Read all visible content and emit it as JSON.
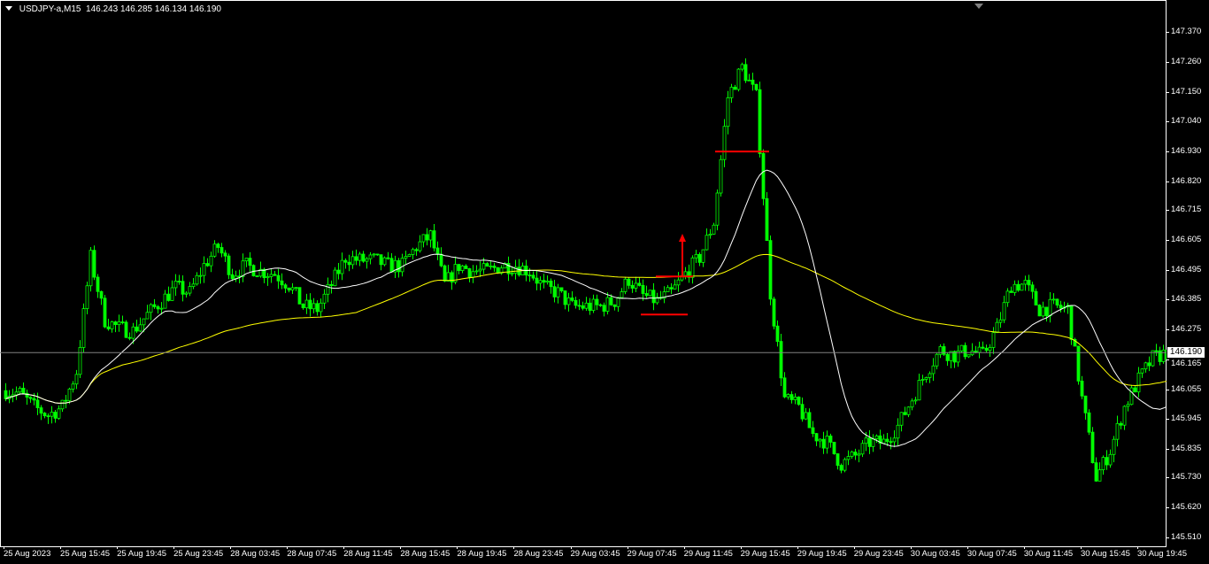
{
  "chart_data": {
    "type": "candlestick",
    "header": {
      "symbol": "USDJPY-a,M15",
      "open": "146.243",
      "high": "146.285",
      "low": "146.134",
      "close": "146.190"
    },
    "current_price": "146.190",
    "ylim": [
      145.49,
      147.4
    ],
    "price_ticks": [
      "147.370",
      "147.260",
      "147.150",
      "147.040",
      "146.930",
      "146.820",
      "146.715",
      "146.605",
      "146.495",
      "146.385",
      "146.275",
      "146.165",
      "146.055",
      "145.945",
      "145.835",
      "145.730",
      "145.620",
      "145.510"
    ],
    "time_ticks": [
      "25 Aug 2023",
      "25 Aug 15:45",
      "25 Aug 19:45",
      "25 Aug 23:45",
      "28 Aug 03:45",
      "28 Aug 07:45",
      "28 Aug 11:45",
      "28 Aug 15:45",
      "28 Aug 19:45",
      "28 Aug 23:45",
      "29 Aug 03:45",
      "29 Aug 07:45",
      "29 Aug 11:45",
      "29 Aug 15:45",
      "29 Aug 19:45",
      "29 Aug 23:45",
      "30 Aug 03:45",
      "30 Aug 07:45",
      "30 Aug 11:45",
      "30 Aug 15:45",
      "30 Aug 19:45"
    ],
    "hourly_close_approx": [
      146.05,
      146.04,
      145.99,
      145.96,
      145.99,
      146.12,
      146.54,
      146.31,
      146.28,
      146.27,
      146.33,
      146.38,
      146.43,
      146.41,
      146.51,
      146.58,
      146.48,
      146.51,
      146.49,
      146.48,
      146.44,
      146.36,
      146.35,
      146.44,
      146.54,
      146.53,
      146.53,
      146.51,
      146.51,
      146.58,
      146.62,
      146.44,
      146.51,
      146.49,
      146.49,
      146.51,
      146.51,
      146.49,
      146.43,
      146.41,
      146.36,
      146.36,
      146.36,
      146.38,
      146.46,
      146.4,
      146.38,
      146.41,
      146.48,
      146.54,
      146.67,
      147.13,
      147.24,
      147.13,
      146.41,
      146.02,
      145.99,
      145.89,
      145.86,
      145.78,
      145.81,
      145.86,
      145.86,
      145.92,
      146.02,
      146.12,
      146.2,
      146.18,
      146.2,
      146.18,
      146.28,
      146.44,
      146.44,
      146.35,
      146.36,
      146.35,
      146.02,
      145.73,
      145.83,
      145.99,
      146.09,
      146.17,
      146.19
    ],
    "indicators": [
      {
        "type": "moving-average-fast",
        "color": "#ffffff"
      },
      {
        "type": "moving-average-slow",
        "color": "#ffff00"
      }
    ],
    "annotations": {
      "levels": [
        146.93,
        146.47,
        146.33
      ],
      "arrow": "up",
      "color": "#ff0000"
    },
    "colors": {
      "background": "#000000",
      "candle": "#00ff00",
      "grid_text": "#ffffff",
      "current_line": "#808080"
    }
  }
}
